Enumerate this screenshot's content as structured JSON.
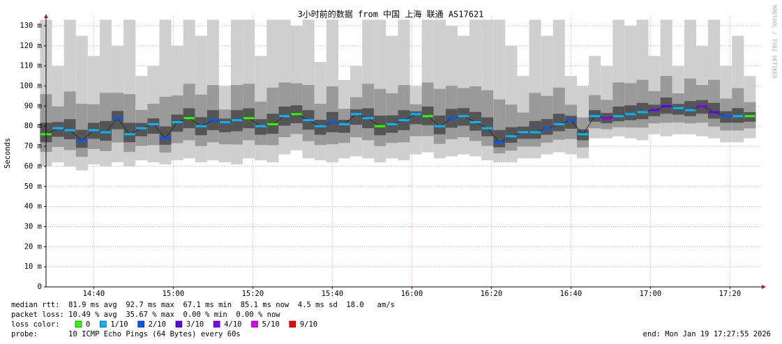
{
  "chart_data": {
    "type": "smoke",
    "title": "3小时前的数据 from  中国 上海 联通 AS17621",
    "y_label": "Seconds",
    "watermark": "RRDTOOL / TOBI OETIKER",
    "xlim": [
      "14:28",
      "17:28"
    ],
    "xticks": [
      "14:40",
      "15:00",
      "15:20",
      "15:40",
      "16:00",
      "16:20",
      "16:40",
      "17:00",
      "17:20"
    ],
    "ylim": [
      0,
      0.135
    ],
    "yticks": [
      0,
      {
        "value": 0.01,
        "label": "10 m"
      },
      {
        "value": 0.02,
        "label": "20 m"
      },
      {
        "value": 0.03,
        "label": "30 m"
      },
      {
        "value": 0.04,
        "label": "40 m"
      },
      {
        "value": 0.05,
        "label": "50 m"
      },
      {
        "value": 0.06,
        "label": "60 m"
      },
      {
        "value": 0.07,
        "label": "70 m"
      },
      {
        "value": 0.08,
        "label": "80 m"
      },
      {
        "value": 0.09,
        "label": "90 m"
      },
      {
        "value": 0.1,
        "label": "100 m"
      },
      {
        "value": 0.11,
        "label": "110 m"
      },
      {
        "value": 0.12,
        "label": "120 m"
      },
      {
        "value": 0.13,
        "label": "130 m"
      }
    ],
    "grid": true,
    "x": [
      "14:28",
      "14:31",
      "14:34",
      "14:37",
      "14:40",
      "14:43",
      "14:46",
      "14:49",
      "14:52",
      "14:55",
      "14:58",
      "15:01",
      "15:04",
      "15:07",
      "15:10",
      "15:13",
      "15:16",
      "15:19",
      "15:22",
      "15:25",
      "15:28",
      "15:31",
      "15:34",
      "15:37",
      "15:40",
      "15:43",
      "15:46",
      "15:49",
      "15:52",
      "15:55",
      "15:58",
      "16:01",
      "16:04",
      "16:07",
      "16:10",
      "16:13",
      "16:16",
      "16:19",
      "16:22",
      "16:25",
      "16:28",
      "16:31",
      "16:34",
      "16:37",
      "16:40",
      "16:43",
      "16:46",
      "16:49",
      "16:52",
      "16:55",
      "16:58",
      "17:01",
      "17:04",
      "17:07",
      "17:10",
      "17:13",
      "17:16",
      "17:19",
      "17:22",
      "17:25"
    ],
    "values": [
      0.076,
      0.079,
      0.078,
      0.073,
      0.078,
      0.077,
      0.084,
      0.076,
      0.079,
      0.081,
      0.074,
      0.082,
      0.084,
      0.08,
      0.083,
      0.082,
      0.083,
      0.084,
      0.08,
      0.081,
      0.085,
      0.086,
      0.083,
      0.08,
      0.082,
      0.081,
      0.086,
      0.084,
      0.08,
      0.081,
      0.083,
      0.086,
      0.085,
      0.08,
      0.084,
      0.085,
      0.082,
      0.079,
      0.072,
      0.075,
      0.077,
      0.077,
      0.079,
      0.081,
      0.083,
      0.076,
      0.085,
      0.084,
      0.085,
      0.086,
      0.087,
      0.088,
      0.09,
      0.089,
      0.088,
      0.09,
      0.087,
      0.085,
      0.085,
      0.085
    ],
    "low": [
      0.06,
      0.062,
      0.06,
      0.058,
      0.061,
      0.06,
      0.062,
      0.06,
      0.063,
      0.062,
      0.061,
      0.063,
      0.064,
      0.062,
      0.063,
      0.062,
      0.061,
      0.064,
      0.063,
      0.062,
      0.066,
      0.068,
      0.064,
      0.063,
      0.062,
      0.064,
      0.065,
      0.064,
      0.062,
      0.064,
      0.063,
      0.066,
      0.067,
      0.064,
      0.065,
      0.066,
      0.065,
      0.063,
      0.062,
      0.062,
      0.064,
      0.064,
      0.066,
      0.067,
      0.066,
      0.064,
      0.074,
      0.074,
      0.075,
      0.074,
      0.073,
      0.076,
      0.075,
      0.076,
      0.076,
      0.075,
      0.074,
      0.072,
      0.072,
      0.074
    ],
    "high": [
      0.133,
      0.11,
      0.133,
      0.125,
      0.115,
      0.133,
      0.12,
      0.133,
      0.105,
      0.11,
      0.133,
      0.12,
      0.133,
      0.125,
      0.133,
      0.1,
      0.133,
      0.133,
      0.115,
      0.133,
      0.133,
      0.13,
      0.133,
      0.112,
      0.133,
      0.103,
      0.11,
      0.133,
      0.133,
      0.125,
      0.133,
      0.1,
      0.133,
      0.133,
      0.13,
      0.125,
      0.133,
      0.133,
      0.133,
      0.12,
      0.105,
      0.133,
      0.125,
      0.133,
      0.105,
      0.1,
      0.115,
      0.11,
      0.133,
      0.13,
      0.133,
      0.115,
      0.133,
      0.11,
      0.133,
      0.12,
      0.133,
      0.11,
      0.125,
      0.105
    ],
    "loss": [
      0,
      1,
      1,
      2,
      1,
      1,
      2,
      1,
      1,
      1,
      2,
      1,
      0,
      1,
      2,
      1,
      1,
      0,
      1,
      0,
      1,
      0,
      1,
      1,
      2,
      1,
      1,
      1,
      0,
      1,
      1,
      1,
      0,
      1,
      2,
      1,
      1,
      1,
      2,
      1,
      1,
      1,
      2,
      1,
      2,
      1,
      1,
      4,
      1,
      1,
      1,
      3,
      3,
      1,
      1,
      4,
      3,
      2,
      1,
      0
    ],
    "loss_legend": {
      "label": "loss color:",
      "items": [
        {
          "loss": 0,
          "label": "0",
          "color": "#26ff00"
        },
        {
          "loss": 1,
          "label": "1/10",
          "color": "#00b8ff"
        },
        {
          "loss": 2,
          "label": "2/10",
          "color": "#0059ff"
        },
        {
          "loss": 3,
          "label": "3/10",
          "color": "#5e00ff"
        },
        {
          "loss": 4,
          "label": "4/10",
          "color": "#7e00ff"
        },
        {
          "loss": 5,
          "label": "5/10",
          "color": "#dd00ff"
        },
        {
          "loss": 9,
          "label": "9/10",
          "color": "#ff0000"
        }
      ]
    },
    "stats": [
      "median rtt:  81.9 ms avg  92.7 ms max  67.1 ms min  85.1 ms now  4.5 ms sd  18.0   am/s",
      "packet loss: 10.49 % avg  35.67 % max  0.00 % min  0.00 % now"
    ],
    "probe": "probe:       10 ICMP Echo Pings (64 Bytes) every 60s",
    "end": "end: Mon Jan 19 17:27:55 2026"
  }
}
